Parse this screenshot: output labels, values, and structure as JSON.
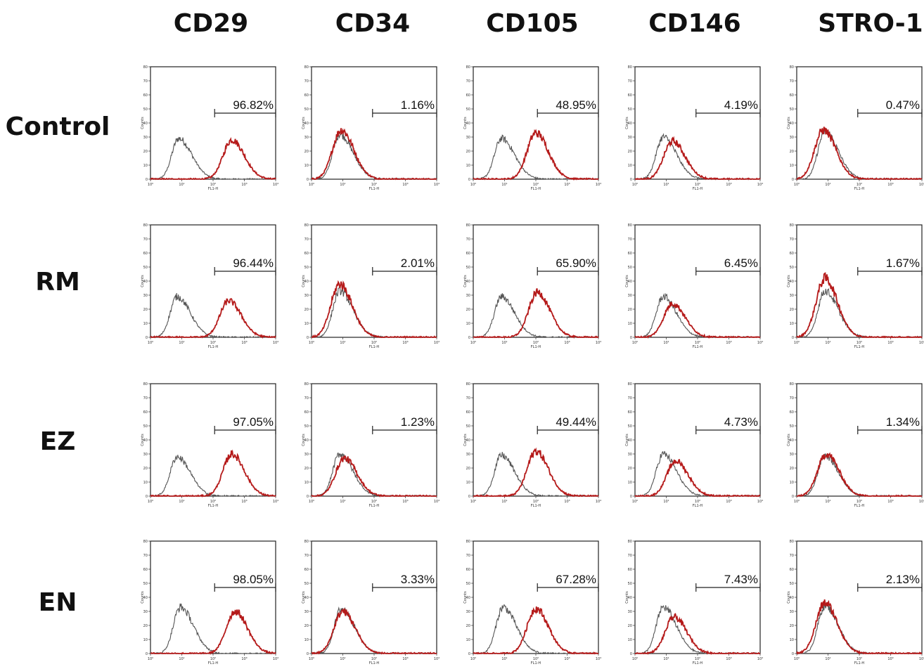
{
  "chart_data": {
    "type": "histogram-grid",
    "x_axis_label": "FL1-H",
    "y_axis_label": "Counts",
    "y_ticks": [
      "0",
      "10",
      "20",
      "30",
      "40",
      "50",
      "60",
      "70",
      "80"
    ],
    "x_ticks": [
      "10⁰",
      "10¹",
      "10²",
      "10³",
      "10⁴"
    ],
    "x_scale": "log",
    "xlim": [
      1,
      10000
    ],
    "ylim": [
      0,
      80
    ],
    "colors": {
      "control": "#555555",
      "sample": "#b51a1a"
    },
    "markers": [
      "CD29",
      "CD34",
      "CD105",
      "CD146",
      "STRO-1"
    ],
    "groups": [
      "Control",
      "RM",
      "EZ",
      "EN"
    ],
    "panels": [
      [
        {
          "marker": "CD29",
          "group": "Control",
          "percent": "96.82%",
          "control_peak": {
            "log_x": 0.9,
            "y": 29
          },
          "sample_peak": {
            "log_x": 2.6,
            "y": 28
          }
        },
        {
          "marker": "CD34",
          "group": "Control",
          "percent": "1.16%",
          "control_peak": {
            "log_x": 0.9,
            "y": 32
          },
          "sample_peak": {
            "log_x": 0.95,
            "y": 35
          }
        },
        {
          "marker": "CD105",
          "group": "Control",
          "percent": "48.95%",
          "control_peak": {
            "log_x": 0.9,
            "y": 29
          },
          "sample_peak": {
            "log_x": 2.0,
            "y": 33
          }
        },
        {
          "marker": "CD146",
          "group": "Control",
          "percent": "4.19%",
          "control_peak": {
            "log_x": 0.9,
            "y": 30
          },
          "sample_peak": {
            "log_x": 1.2,
            "y": 27
          }
        },
        {
          "marker": "STRO-1",
          "group": "Control",
          "percent": "0.47%",
          "control_peak": {
            "log_x": 0.9,
            "y": 34
          },
          "sample_peak": {
            "log_x": 0.85,
            "y": 35
          }
        }
      ],
      [
        {
          "marker": "CD29",
          "group": "RM",
          "percent": "96.44%",
          "control_peak": {
            "log_x": 0.85,
            "y": 29
          },
          "sample_peak": {
            "log_x": 2.5,
            "y": 26
          }
        },
        {
          "marker": "CD34",
          "group": "RM",
          "percent": "2.01%",
          "control_peak": {
            "log_x": 0.9,
            "y": 33
          },
          "sample_peak": {
            "log_x": 0.9,
            "y": 38
          }
        },
        {
          "marker": "CD105",
          "group": "RM",
          "percent": "65.90%",
          "control_peak": {
            "log_x": 0.9,
            "y": 29
          },
          "sample_peak": {
            "log_x": 2.05,
            "y": 32
          }
        },
        {
          "marker": "CD146",
          "group": "RM",
          "percent": "6.45%",
          "control_peak": {
            "log_x": 0.9,
            "y": 29
          },
          "sample_peak": {
            "log_x": 1.2,
            "y": 24
          }
        },
        {
          "marker": "STRO-1",
          "group": "RM",
          "percent": "1.67%",
          "control_peak": {
            "log_x": 0.9,
            "y": 33
          },
          "sample_peak": {
            "log_x": 0.9,
            "y": 42
          }
        }
      ],
      [
        {
          "marker": "CD29",
          "group": "EZ",
          "percent": "97.05%",
          "control_peak": {
            "log_x": 0.85,
            "y": 28
          },
          "sample_peak": {
            "log_x": 2.6,
            "y": 30
          }
        },
        {
          "marker": "CD34",
          "group": "EZ",
          "percent": "1.23%",
          "control_peak": {
            "log_x": 0.9,
            "y": 30
          },
          "sample_peak": {
            "log_x": 1.05,
            "y": 27
          }
        },
        {
          "marker": "CD105",
          "group": "EZ",
          "percent": "49.44%",
          "control_peak": {
            "log_x": 0.9,
            "y": 29
          },
          "sample_peak": {
            "log_x": 2.0,
            "y": 32
          }
        },
        {
          "marker": "CD146",
          "group": "EZ",
          "percent": "4.73%",
          "control_peak": {
            "log_x": 0.9,
            "y": 30
          },
          "sample_peak": {
            "log_x": 1.3,
            "y": 25
          }
        },
        {
          "marker": "STRO-1",
          "group": "EZ",
          "percent": "1.34%",
          "control_peak": {
            "log_x": 0.9,
            "y": 29
          },
          "sample_peak": {
            "log_x": 0.95,
            "y": 30
          }
        }
      ],
      [
        {
          "marker": "CD29",
          "group": "EN",
          "percent": "98.05%",
          "control_peak": {
            "log_x": 0.95,
            "y": 33
          },
          "sample_peak": {
            "log_x": 2.7,
            "y": 30
          }
        },
        {
          "marker": "CD34",
          "group": "EN",
          "percent": "3.33%",
          "control_peak": {
            "log_x": 0.95,
            "y": 32
          },
          "sample_peak": {
            "log_x": 1.0,
            "y": 30
          }
        },
        {
          "marker": "CD105",
          "group": "EN",
          "percent": "67.28%",
          "control_peak": {
            "log_x": 0.95,
            "y": 33
          },
          "sample_peak": {
            "log_x": 2.0,
            "y": 32
          }
        },
        {
          "marker": "CD146",
          "group": "EN",
          "percent": "7.43%",
          "control_peak": {
            "log_x": 0.9,
            "y": 33
          },
          "sample_peak": {
            "log_x": 1.25,
            "y": 26
          }
        },
        {
          "marker": "STRO-1",
          "group": "EN",
          "percent": "2.13%",
          "control_peak": {
            "log_x": 0.9,
            "y": 34
          },
          "sample_peak": {
            "log_x": 0.9,
            "y": 36
          }
        }
      ]
    ]
  }
}
